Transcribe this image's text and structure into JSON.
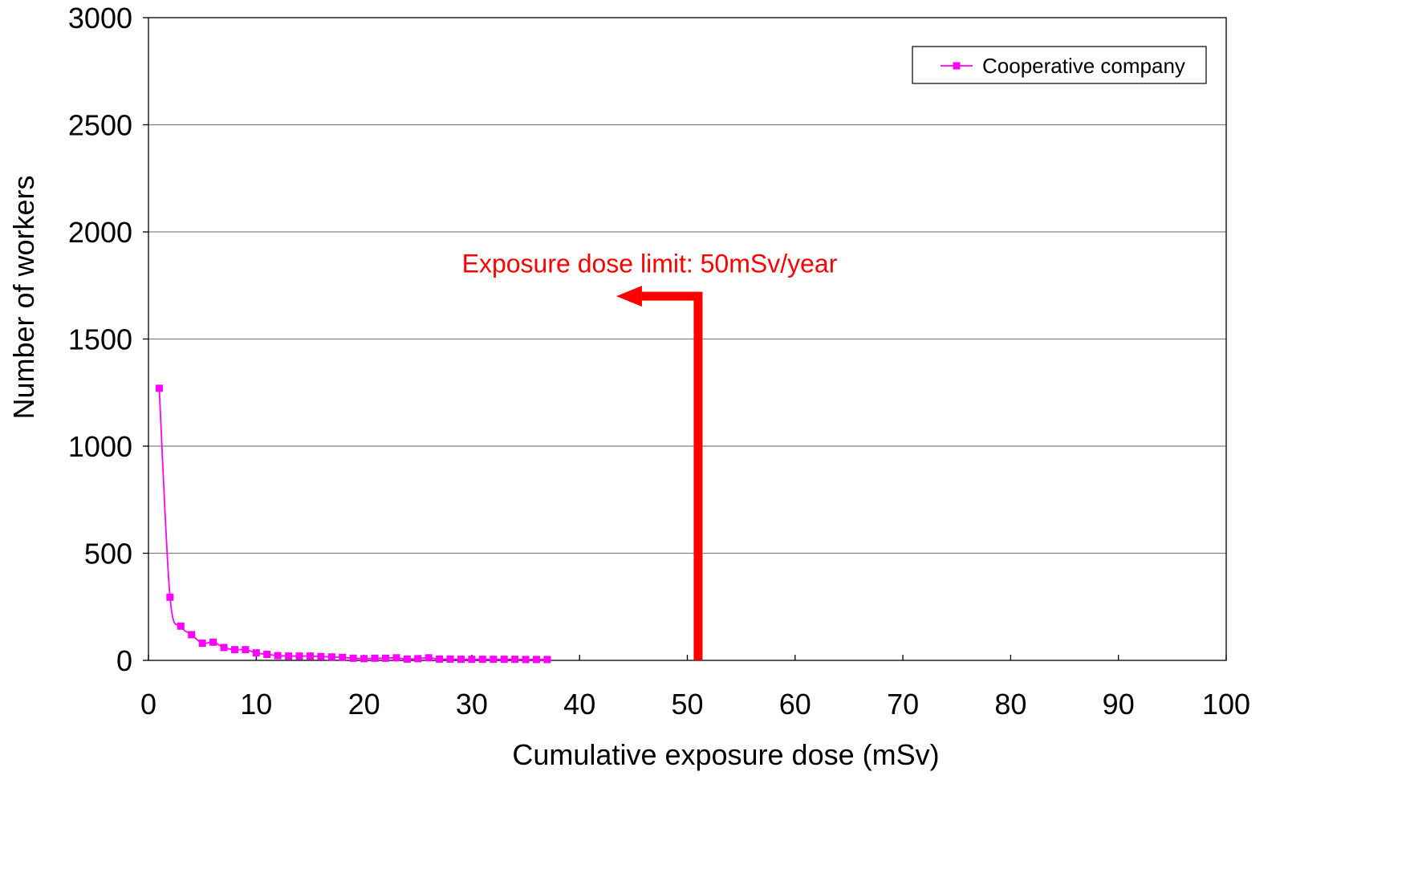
{
  "chart_data": {
    "type": "line",
    "title": "",
    "xlabel": "Cumulative exposure dose (mSv)",
    "ylabel": "Number of workers",
    "xlim": [
      0,
      100
    ],
    "ylim": [
      0,
      3000
    ],
    "x_ticks": [
      0,
      10,
      20,
      30,
      40,
      50,
      60,
      70,
      80,
      90,
      100
    ],
    "y_ticks": [
      0,
      500,
      1000,
      1500,
      2000,
      2500,
      3000
    ],
    "grid": "horizontal",
    "legend_position": "top-right",
    "series": [
      {
        "name": "Cooperative company",
        "color": "#ff00ff",
        "marker": "square",
        "x": [
          1,
          2,
          3,
          4,
          5,
          6,
          7,
          8,
          9,
          10,
          11,
          12,
          13,
          14,
          15,
          16,
          17,
          18,
          19,
          20,
          21,
          22,
          23,
          24,
          25,
          26,
          27,
          28,
          29,
          30,
          31,
          32,
          33,
          34,
          35,
          36,
          37
        ],
        "values": [
          1270,
          295,
          160,
          120,
          80,
          85,
          60,
          50,
          50,
          35,
          28,
          22,
          20,
          20,
          20,
          18,
          16,
          14,
          10,
          8,
          10,
          10,
          12,
          6,
          8,
          12,
          6,
          6,
          5,
          5,
          5,
          5,
          5,
          5,
          4,
          4,
          4
        ]
      }
    ],
    "annotation": {
      "text": "Exposure dose limit: 50mSv/year",
      "color": "#ff0000",
      "x": 51
    }
  }
}
